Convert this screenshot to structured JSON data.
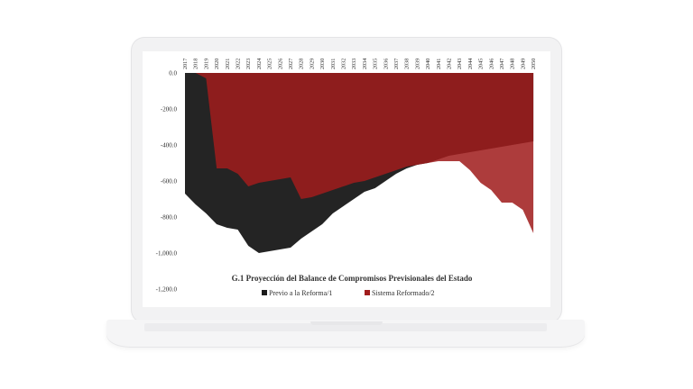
{
  "chart_data": {
    "type": "area",
    "title": "G.1 Proyección del Balance de Compromisos Previsionales del Estado",
    "xlabel": "",
    "ylabel": "",
    "ylim": [
      -1200,
      0
    ],
    "y_ticks": [
      "0.0",
      "-200.0",
      "-400.0",
      "-600.0",
      "-800.0",
      "-1,000.0",
      "-1,200.0"
    ],
    "y_tick_values": [
      0,
      -200,
      -400,
      -600,
      -800,
      -1000,
      -1200
    ],
    "x": [
      2017,
      2018,
      2019,
      2020,
      2021,
      2022,
      2023,
      2024,
      2025,
      2026,
      2027,
      2028,
      2029,
      2030,
      2031,
      2032,
      2033,
      2034,
      2035,
      2036,
      2037,
      2038,
      2039,
      2040,
      2041,
      2042,
      2043,
      2044,
      2045,
      2046,
      2047,
      2048,
      2049,
      2050
    ],
    "grid": false,
    "legend_position": "bottom",
    "series": [
      {
        "name": "Previo a la Reforma/1",
        "color": "#1b1b1b",
        "values": [
          -670,
          -730,
          -780,
          -840,
          -860,
          -870,
          -960,
          -1000,
          -990,
          -980,
          -970,
          -920,
          -880,
          -840,
          -780,
          -740,
          -700,
          -660,
          -640,
          -600,
          -560,
          -530,
          -510,
          -500,
          -480,
          -460,
          -450,
          -440,
          -430,
          -420,
          -410,
          -400,
          -390,
          -380
        ]
      },
      {
        "name": "Sistema Reformado/2",
        "color": "#a01c1c",
        "values": [
          0,
          0,
          -30,
          -530,
          -530,
          -560,
          -630,
          -610,
          -600,
          -590,
          -580,
          -700,
          -690,
          -670,
          -650,
          -630,
          -610,
          -600,
          -580,
          -560,
          -540,
          -520,
          -510,
          -500,
          -490,
          -490,
          -490,
          -540,
          -610,
          -650,
          -720,
          -720,
          -760,
          -890
        ]
      }
    ]
  }
}
